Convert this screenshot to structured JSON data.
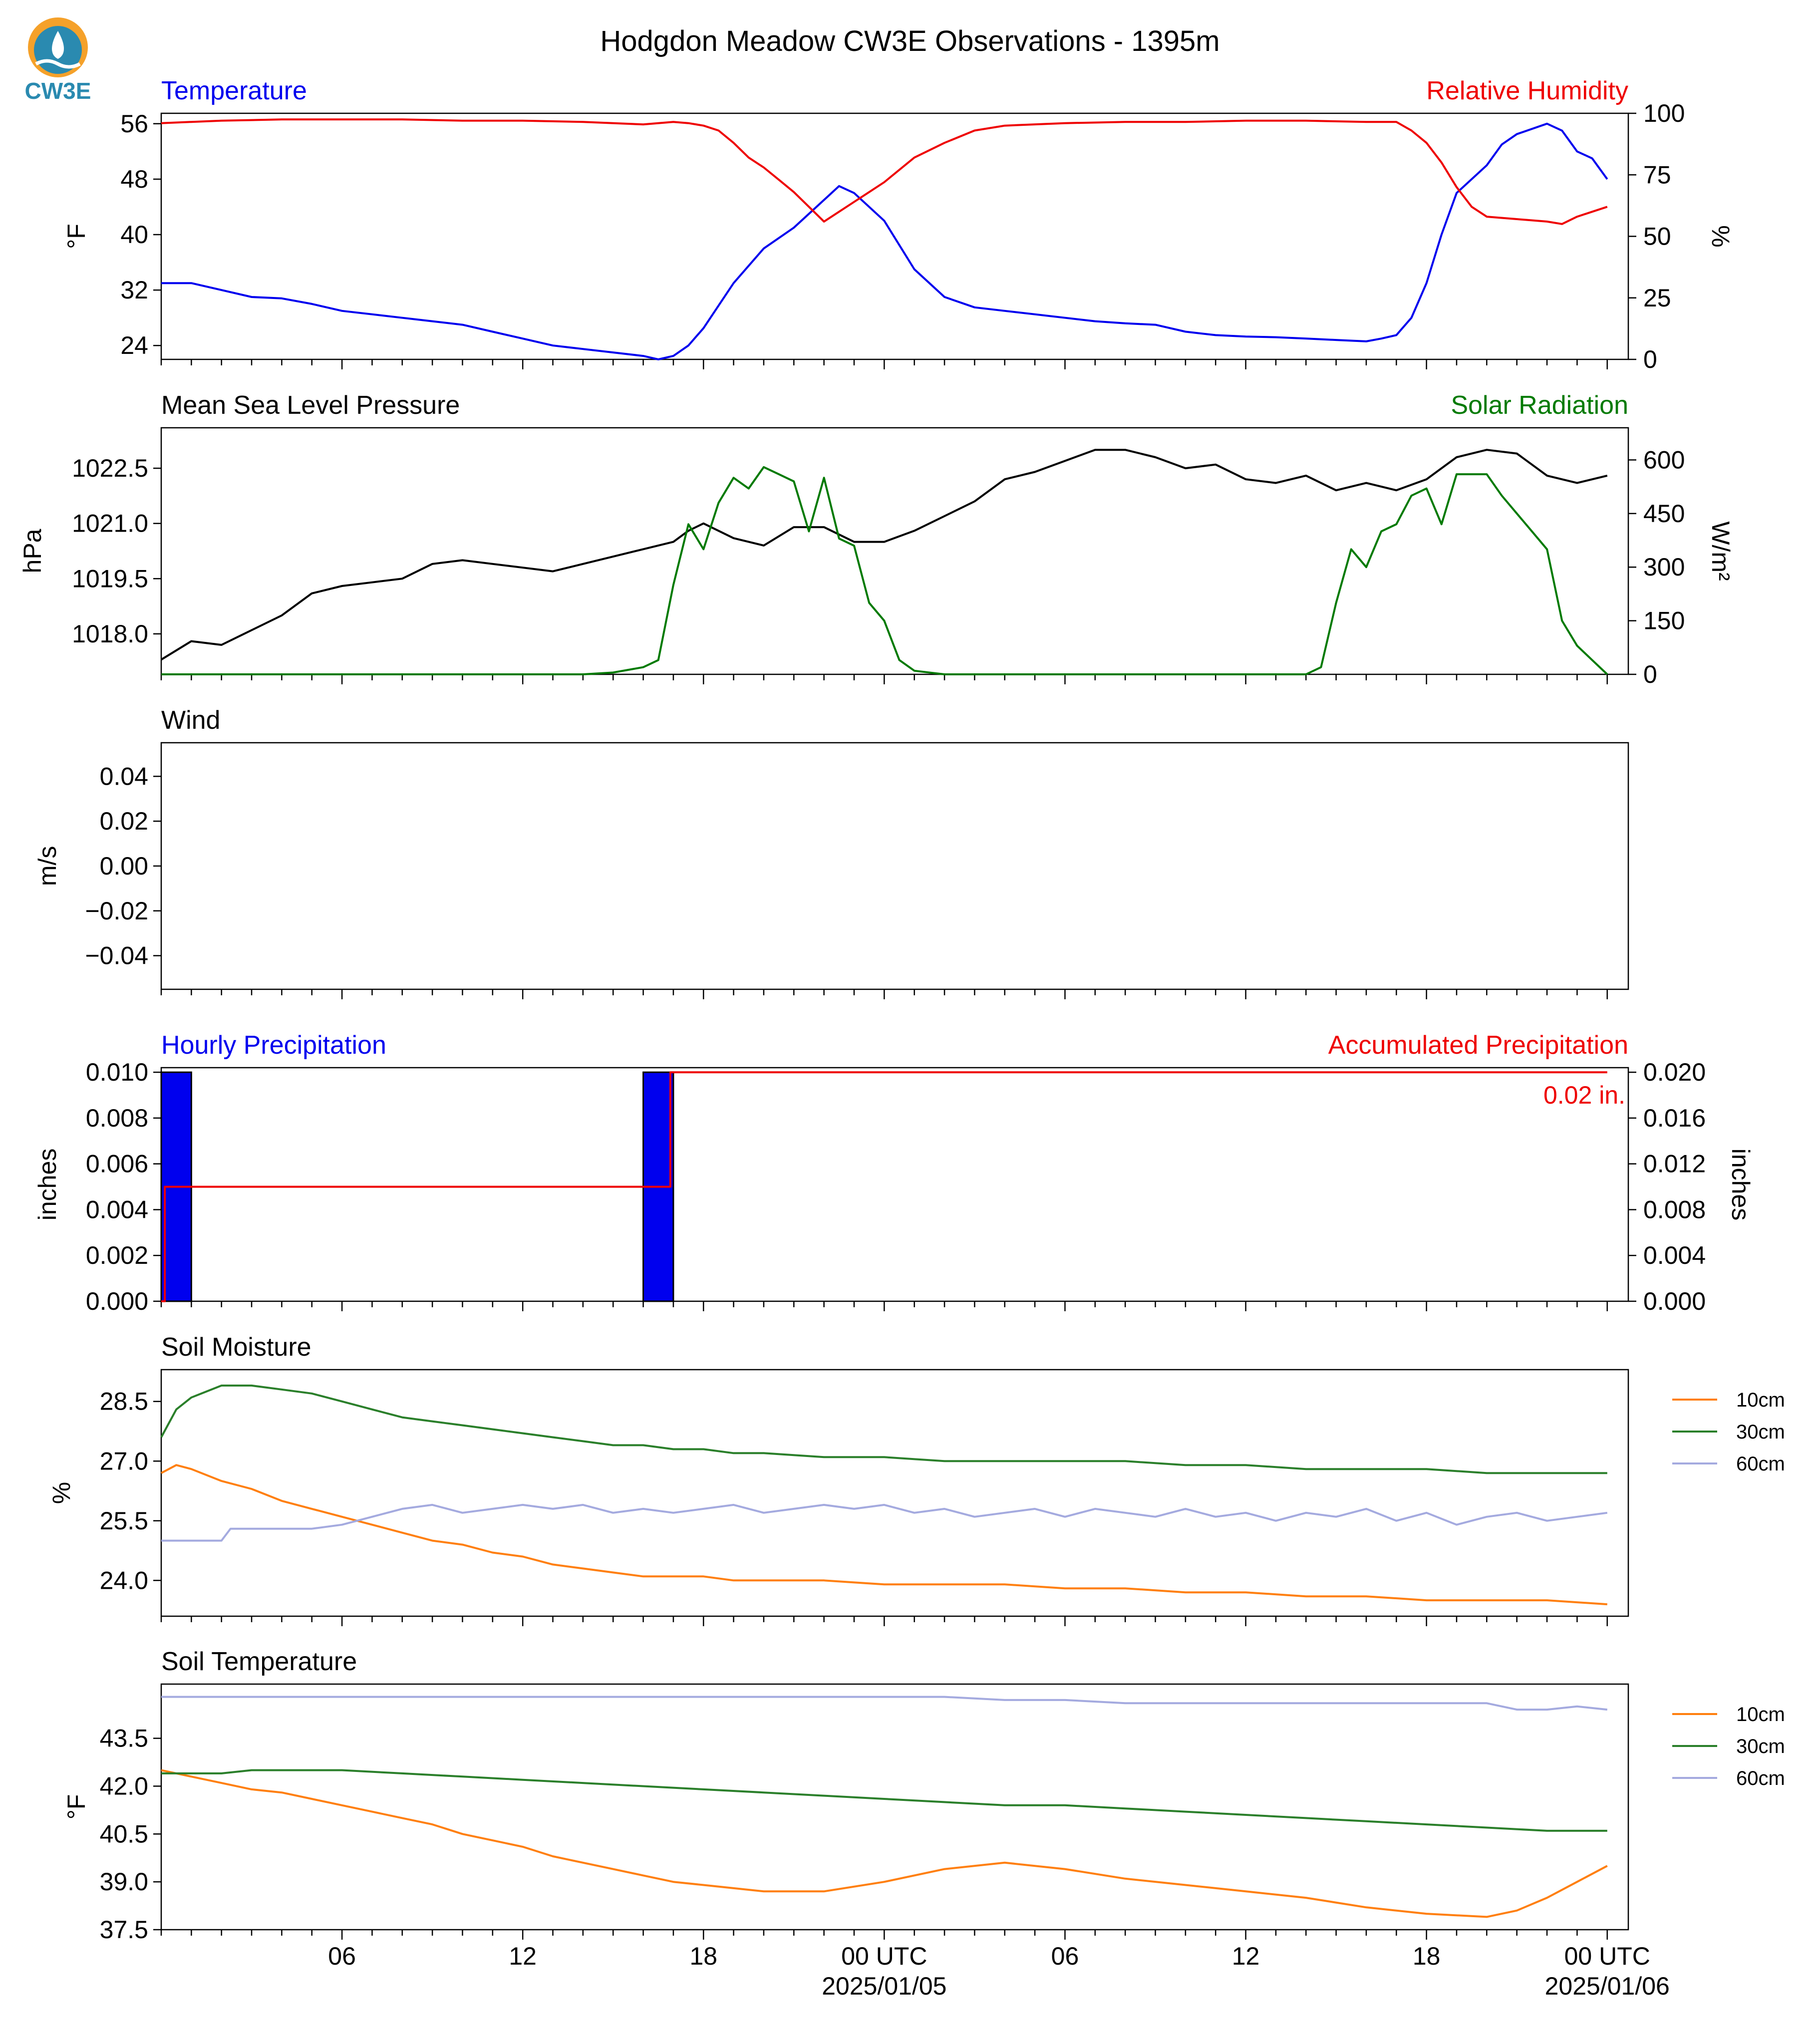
{
  "title": "Hodgdon Meadow CW3E Observations - 1395m",
  "logo_text": "CW3E",
  "colors": {
    "blue": "#0000ee",
    "red": "#ee0000",
    "black": "#000000",
    "green": "#007a00",
    "orange": "#ff7f0e",
    "soil_green": "#2a7f2a",
    "lavender": "#a4aadf",
    "logo": "#2a8ab0",
    "logo_orange": "#f5a12a"
  },
  "time_axis": {
    "ticks": [
      {
        "label": "06",
        "t": 6
      },
      {
        "label": "12",
        "t": 12
      },
      {
        "label": "18",
        "t": 18
      },
      {
        "label": "00 UTC",
        "t": 24,
        "date": "2025/01/05"
      },
      {
        "label": "06",
        "t": 30
      },
      {
        "label": "12",
        "t": 36
      },
      {
        "label": "18",
        "t": 42
      },
      {
        "label": "00 UTC",
        "t": 48,
        "date": "2025/01/06"
      }
    ]
  },
  "chart_data": [
    {
      "type": "line",
      "title_left": "Temperature",
      "title_right": "Relative Humidity",
      "ylabel": "°F",
      "ylabel_right": "%",
      "ylim": [
        22,
        57.5
      ],
      "ylim_right": [
        0,
        100
      ],
      "yticks": [
        24,
        32,
        40,
        48,
        56
      ],
      "yticks_right": [
        0,
        25,
        50,
        75,
        100
      ],
      "series": [
        {
          "name": "Temperature",
          "axis": "left",
          "color": "blue",
          "t": [
            0,
            1,
            2,
            3,
            4,
            5,
            6,
            7,
            8,
            9,
            10,
            11,
            12,
            13,
            14,
            15,
            16,
            16.5,
            17,
            17.5,
            18,
            19,
            20,
            21,
            21.5,
            22,
            22.5,
            23,
            24,
            25,
            26,
            27,
            28,
            29,
            30,
            31,
            32,
            33,
            34,
            35,
            36,
            37,
            38,
            39,
            40,
            40.5,
            41,
            41.5,
            42,
            42.5,
            43,
            44,
            44.5,
            45,
            46,
            46.5,
            47,
            47.5,
            48
          ],
          "v": [
            33,
            33,
            32,
            31,
            30.8,
            30,
            29,
            28.5,
            28,
            27.5,
            27,
            26,
            25,
            24,
            23.5,
            23,
            22.5,
            22,
            22.5,
            24,
            26.5,
            33,
            38,
            41,
            43,
            45,
            47,
            46,
            42,
            35,
            31,
            29.5,
            29,
            28.5,
            28,
            27.5,
            27.2,
            27,
            26,
            25.5,
            25.3,
            25.2,
            25,
            24.8,
            24.6,
            25,
            25.5,
            28,
            33,
            40,
            46,
            50,
            53,
            54.5,
            56,
            55,
            52,
            51,
            48
          ]
        },
        {
          "name": "Relative Humidity",
          "axis": "right",
          "color": "red",
          "t": [
            0,
            2,
            4,
            6,
            8,
            10,
            12,
            14,
            16,
            16.5,
            17,
            17.5,
            18,
            18.5,
            19,
            19.5,
            20,
            20.5,
            21,
            21.5,
            22,
            22.5,
            23,
            23.5,
            24,
            25,
            26,
            27,
            28,
            30,
            32,
            34,
            36,
            38,
            40,
            41,
            41.5,
            42,
            42.5,
            43,
            43.5,
            44,
            45,
            46,
            46.5,
            47,
            48
          ],
          "v": [
            96,
            97,
            97.5,
            97.5,
            97.5,
            97,
            97,
            96.5,
            95.5,
            96,
            96.5,
            96,
            95,
            93,
            88,
            82,
            78,
            73,
            68,
            62,
            56,
            60,
            64,
            68,
            72,
            82,
            88,
            93,
            95,
            96,
            96.5,
            96.5,
            97,
            97,
            96.5,
            96.5,
            93,
            88,
            80,
            70,
            62,
            58,
            57,
            56,
            55,
            58,
            62
          ]
        }
      ]
    },
    {
      "type": "line",
      "title_left": "Mean Sea Level Pressure",
      "title_right": "Solar Radiation",
      "ylabel": "hPa",
      "ylabel_right": "W/m²",
      "ylim": [
        1016.9,
        1023.6
      ],
      "ylim_right": [
        0,
        690
      ],
      "yticks": [
        1018.0,
        1019.5,
        1021.0,
        1022.5
      ],
      "yticks_right": [
        0,
        150,
        300,
        450,
        600
      ],
      "series": [
        {
          "name": "Mean Sea Level Pressure",
          "axis": "left",
          "color": "black",
          "t": [
            0,
            1,
            2,
            3,
            4,
            5,
            6,
            7,
            8,
            9,
            10,
            11,
            12,
            13,
            14,
            15,
            16,
            17,
            17.5,
            18,
            19,
            20,
            21,
            22,
            23,
            24,
            25,
            26,
            27,
            28,
            29,
            30,
            31,
            32,
            33,
            34,
            35,
            36,
            37,
            38,
            39,
            40,
            41,
            42,
            43,
            44,
            45,
            46,
            47,
            48
          ],
          "v": [
            1017.3,
            1017.8,
            1017.7,
            1018.1,
            1018.5,
            1019.1,
            1019.3,
            1019.4,
            1019.5,
            1019.9,
            1020.0,
            1019.9,
            1019.8,
            1019.7,
            1019.9,
            1020.1,
            1020.3,
            1020.5,
            1020.8,
            1021.0,
            1020.6,
            1020.4,
            1020.9,
            1020.9,
            1020.5,
            1020.5,
            1020.8,
            1021.2,
            1021.6,
            1022.2,
            1022.4,
            1022.7,
            1023.0,
            1023.0,
            1022.8,
            1022.5,
            1022.6,
            1022.2,
            1022.1,
            1022.3,
            1021.9,
            1022.1,
            1021.9,
            1022.2,
            1022.8,
            1023.0,
            1022.9,
            1022.3,
            1022.1,
            1022.3
          ]
        },
        {
          "name": "Solar Radiation",
          "axis": "right",
          "color": "green",
          "t": [
            0,
            14,
            15,
            16,
            16.5,
            17,
            17.5,
            18,
            18.5,
            19,
            19.5,
            20,
            20.5,
            21,
            21.5,
            22,
            22.5,
            23,
            23.5,
            24,
            24.5,
            25,
            26,
            30,
            36,
            38,
            38.5,
            39,
            39.5,
            40,
            40.5,
            41,
            41.5,
            42,
            42.5,
            43,
            43.5,
            44,
            44.5,
            45,
            45.5,
            46,
            46.5,
            47,
            47.5,
            48
          ],
          "v": [
            0,
            0,
            5,
            20,
            40,
            250,
            420,
            350,
            480,
            550,
            520,
            580,
            560,
            540,
            400,
            550,
            380,
            360,
            200,
            150,
            40,
            10,
            0,
            0,
            0,
            0,
            20,
            200,
            350,
            300,
            400,
            420,
            500,
            520,
            420,
            560,
            560,
            560,
            500,
            450,
            400,
            350,
            150,
            80,
            40,
            0
          ]
        }
      ]
    },
    {
      "type": "line",
      "title_left": "Wind",
      "ylabel": "m/s",
      "ylim": [
        -0.055,
        0.055
      ],
      "yticks": [
        -0.04,
        -0.02,
        0.0,
        0.02,
        0.04
      ],
      "ytick_labels": [
        "−0.04",
        "−0.02",
        "0.00",
        "0.02",
        "0.04"
      ],
      "series": []
    },
    {
      "type": "bar",
      "title_left": "Hourly Precipitation",
      "title_right": "Accumulated Precipitation",
      "ylabel": "inches",
      "ylabel_right": "inches",
      "ylim": [
        0,
        0.0102
      ],
      "ylim_right": [
        0,
        0.0204
      ],
      "yticks": [
        0.0,
        0.002,
        0.004,
        0.006,
        0.008,
        0.01
      ],
      "yticks_right": [
        0.0,
        0.004,
        0.008,
        0.012,
        0.016,
        0.02
      ],
      "annotation": "0.02 in.",
      "bars": {
        "name": "Hourly Precipitation",
        "color": "blue",
        "t_start": [
          0,
          16
        ],
        "t_end": [
          1,
          17
        ],
        "v": [
          0.01,
          0.01
        ]
      },
      "series": [
        {
          "name": "Accumulated Precipitation",
          "axis": "right",
          "color": "red",
          "step": true,
          "t": [
            0,
            0.12,
            16.7,
            16.9,
            48
          ],
          "v": [
            0,
            0.01,
            0.01,
            0.02,
            0.02
          ]
        }
      ]
    },
    {
      "type": "line",
      "title_left": "Soil Moisture",
      "ylabel": "%",
      "ylim": [
        23.1,
        29.3
      ],
      "yticks": [
        24.0,
        25.5,
        27.0,
        28.5
      ],
      "legend": [
        "10cm",
        "30cm",
        "60cm"
      ],
      "series": [
        {
          "name": "10cm",
          "color": "orange",
          "t": [
            0,
            0.5,
            1,
            2,
            3,
            4,
            5,
            6,
            7,
            8,
            9,
            10,
            11,
            12,
            13,
            14,
            15,
            16,
            17,
            18,
            19,
            20,
            22,
            24,
            26,
            28,
            30,
            32,
            34,
            36,
            38,
            40,
            42,
            44,
            46,
            48
          ],
          "v": [
            26.7,
            26.9,
            26.8,
            26.5,
            26.3,
            26.0,
            25.8,
            25.6,
            25.4,
            25.2,
            25.0,
            24.9,
            24.7,
            24.6,
            24.4,
            24.3,
            24.2,
            24.1,
            24.1,
            24.1,
            24.0,
            24.0,
            24.0,
            23.9,
            23.9,
            23.9,
            23.8,
            23.8,
            23.7,
            23.7,
            23.6,
            23.6,
            23.5,
            23.5,
            23.5,
            23.4
          ]
        },
        {
          "name": "30cm",
          "color": "soil_green",
          "t": [
            0,
            0.5,
            1,
            2,
            3,
            4,
            5,
            6,
            7,
            8,
            9,
            10,
            11,
            12,
            13,
            14,
            15,
            16,
            17,
            18,
            19,
            20,
            22,
            24,
            26,
            28,
            30,
            32,
            34,
            36,
            38,
            40,
            42,
            44,
            46,
            48
          ],
          "v": [
            27.6,
            28.3,
            28.6,
            28.9,
            28.9,
            28.8,
            28.7,
            28.5,
            28.3,
            28.1,
            28.0,
            27.9,
            27.8,
            27.7,
            27.6,
            27.5,
            27.4,
            27.4,
            27.3,
            27.3,
            27.2,
            27.2,
            27.1,
            27.1,
            27.0,
            27.0,
            27.0,
            27.0,
            26.9,
            26.9,
            26.8,
            26.8,
            26.8,
            26.7,
            26.7,
            26.7
          ]
        },
        {
          "name": "60cm",
          "color": "lavender",
          "t": [
            0,
            2,
            2.3,
            3,
            4,
            5,
            6,
            7,
            8,
            9,
            10,
            11,
            12,
            13,
            14,
            15,
            16,
            17,
            18,
            19,
            20,
            21,
            22,
            23,
            24,
            25,
            26,
            27,
            28,
            29,
            30,
            31,
            32,
            33,
            34,
            35,
            36,
            37,
            38,
            39,
            40,
            41,
            42,
            43,
            44,
            45,
            46,
            47,
            48
          ],
          "v": [
            25.0,
            25.0,
            25.3,
            25.3,
            25.3,
            25.3,
            25.4,
            25.6,
            25.8,
            25.9,
            25.7,
            25.8,
            25.9,
            25.8,
            25.9,
            25.7,
            25.8,
            25.7,
            25.8,
            25.9,
            25.7,
            25.8,
            25.9,
            25.8,
            25.9,
            25.7,
            25.8,
            25.6,
            25.7,
            25.8,
            25.6,
            25.8,
            25.7,
            25.6,
            25.8,
            25.6,
            25.7,
            25.5,
            25.7,
            25.6,
            25.8,
            25.5,
            25.7,
            25.4,
            25.6,
            25.7,
            25.5,
            25.6,
            25.7
          ]
        }
      ]
    },
    {
      "type": "line",
      "title_left": "Soil Temperature",
      "ylabel": "°F",
      "ylim": [
        37.5,
        45.2
      ],
      "yticks": [
        37.5,
        39.0,
        40.5,
        42.0,
        43.5
      ],
      "legend": [
        "10cm",
        "30cm",
        "60cm"
      ],
      "series": [
        {
          "name": "10cm",
          "color": "orange",
          "t": [
            0,
            1,
            2,
            3,
            4,
            5,
            6,
            7,
            8,
            9,
            10,
            11,
            12,
            13,
            14,
            15,
            16,
            17,
            18,
            19,
            20,
            22,
            24,
            26,
            28,
            30,
            32,
            34,
            36,
            38,
            40,
            42,
            44,
            45,
            46,
            47,
            48
          ],
          "v": [
            42.5,
            42.3,
            42.1,
            41.9,
            41.8,
            41.6,
            41.4,
            41.2,
            41.0,
            40.8,
            40.5,
            40.3,
            40.1,
            39.8,
            39.6,
            39.4,
            39.2,
            39.0,
            38.9,
            38.8,
            38.7,
            38.7,
            39.0,
            39.4,
            39.6,
            39.4,
            39.1,
            38.9,
            38.7,
            38.5,
            38.2,
            38.0,
            37.9,
            38.1,
            38.5,
            39.0,
            39.5
          ]
        },
        {
          "name": "30cm",
          "color": "soil_green",
          "t": [
            0,
            2,
            3,
            6,
            8,
            10,
            12,
            14,
            16,
            18,
            20,
            22,
            24,
            26,
            28,
            30,
            32,
            34,
            36,
            38,
            40,
            42,
            44,
            46,
            48
          ],
          "v": [
            42.4,
            42.4,
            42.5,
            42.5,
            42.4,
            42.3,
            42.2,
            42.1,
            42.0,
            41.9,
            41.8,
            41.7,
            41.6,
            41.5,
            41.4,
            41.4,
            41.3,
            41.2,
            41.1,
            41.0,
            40.9,
            40.8,
            40.7,
            40.6,
            40.6
          ]
        },
        {
          "name": "60cm",
          "color": "lavender",
          "t": [
            0,
            10,
            20,
            26,
            28,
            30,
            32,
            34,
            36,
            38,
            40,
            42,
            44,
            45,
            46,
            47,
            48
          ],
          "v": [
            44.8,
            44.8,
            44.8,
            44.8,
            44.7,
            44.7,
            44.6,
            44.6,
            44.6,
            44.6,
            44.6,
            44.6,
            44.6,
            44.4,
            44.4,
            44.5,
            44.4
          ]
        }
      ]
    }
  ]
}
